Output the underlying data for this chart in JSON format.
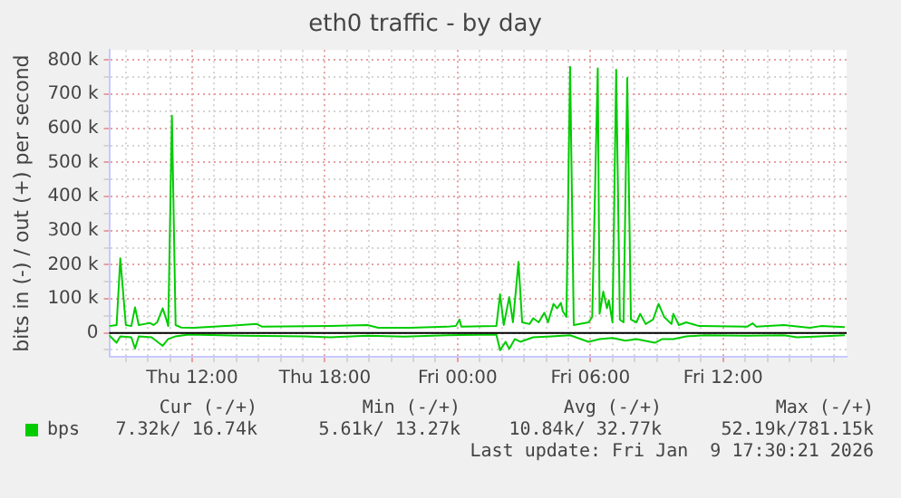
{
  "chart_data": {
    "type": "line",
    "title": "eth0 traffic - by day",
    "ylabel": "bits in (-) / out (+) per second",
    "xlim": [
      "2026-01-08T08:15",
      "2026-01-09T17:35"
    ],
    "xticks": [
      {
        "value": "2026-01-08T09:00",
        "label": null
      },
      {
        "value": "2026-01-08T10:00",
        "label": null
      },
      {
        "value": "2026-01-08T11:00",
        "label": null
      },
      {
        "value": "2026-01-08T12:00",
        "label": "Thu 12:00"
      },
      {
        "value": "2026-01-08T13:00",
        "label": null
      },
      {
        "value": "2026-01-08T14:00",
        "label": null
      },
      {
        "value": "2026-01-08T15:00",
        "label": null
      },
      {
        "value": "2026-01-08T16:00",
        "label": null
      },
      {
        "value": "2026-01-08T17:00",
        "label": null
      },
      {
        "value": "2026-01-08T18:00",
        "label": "Thu 18:00"
      },
      {
        "value": "2026-01-08T19:00",
        "label": null
      },
      {
        "value": "2026-01-08T20:00",
        "label": null
      },
      {
        "value": "2026-01-08T21:00",
        "label": null
      },
      {
        "value": "2026-01-08T22:00",
        "label": null
      },
      {
        "value": "2026-01-08T23:00",
        "label": null
      },
      {
        "value": "2026-01-09T00:00",
        "label": "Fri 00:00"
      },
      {
        "value": "2026-01-09T01:00",
        "label": null
      },
      {
        "value": "2026-01-09T02:00",
        "label": null
      },
      {
        "value": "2026-01-09T03:00",
        "label": null
      },
      {
        "value": "2026-01-09T04:00",
        "label": null
      },
      {
        "value": "2026-01-09T05:00",
        "label": null
      },
      {
        "value": "2026-01-09T06:00",
        "label": "Fri 06:00"
      },
      {
        "value": "2026-01-09T07:00",
        "label": null
      },
      {
        "value": "2026-01-09T08:00",
        "label": null
      },
      {
        "value": "2026-01-09T09:00",
        "label": null
      },
      {
        "value": "2026-01-09T10:00",
        "label": null
      },
      {
        "value": "2026-01-09T11:00",
        "label": null
      },
      {
        "value": "2026-01-09T12:00",
        "label": "Fri 12:00"
      },
      {
        "value": "2026-01-09T13:00",
        "label": null
      },
      {
        "value": "2026-01-09T14:00",
        "label": null
      },
      {
        "value": "2026-01-09T15:00",
        "label": null
      },
      {
        "value": "2026-01-09T16:00",
        "label": null
      },
      {
        "value": "2026-01-09T17:00",
        "label": null
      }
    ],
    "ylim": [
      -70,
      830
    ],
    "yticks": [
      {
        "value": -50,
        "label": null
      },
      {
        "value": 0,
        "label": "0"
      },
      {
        "value": 50,
        "label": null
      },
      {
        "value": 100,
        "label": "100 k"
      },
      {
        "value": 150,
        "label": null
      },
      {
        "value": 200,
        "label": "200 k"
      },
      {
        "value": 250,
        "label": null
      },
      {
        "value": 300,
        "label": "300 k"
      },
      {
        "value": 350,
        "label": null
      },
      {
        "value": 400,
        "label": "400 k"
      },
      {
        "value": 450,
        "label": null
      },
      {
        "value": 500,
        "label": "500 k"
      },
      {
        "value": 550,
        "label": null
      },
      {
        "value": 600,
        "label": "600 k"
      },
      {
        "value": 650,
        "label": null
      },
      {
        "value": 700,
        "label": "700 k"
      },
      {
        "value": 750,
        "label": null
      },
      {
        "value": 800,
        "label": "800 k"
      }
    ],
    "grid": true,
    "legend": "bottom left",
    "marker": "none",
    "line_style": "solid",
    "ref_lines": [
      {
        "axis": "y",
        "value": 0,
        "color": "#000000"
      }
    ],
    "series": [
      {
        "name": "bps",
        "color": "#00cc00",
        "x": [
          "2026-01-08T08:15",
          "2026-01-08T08:35",
          "2026-01-08T08:45",
          "2026-01-08T09:00",
          "2026-01-08T09:15",
          "2026-01-08T09:25",
          "2026-01-08T09:35",
          "2026-01-08T09:50",
          "2026-01-08T10:05",
          "2026-01-08T10:15",
          "2026-01-08T10:25",
          "2026-01-08T10:40",
          "2026-01-08T10:50",
          "2026-01-08T10:55",
          "2026-01-08T11:05",
          "2026-01-08T11:15",
          "2026-01-08T11:30",
          "2026-01-08T12:05",
          "2026-01-08T13:30",
          "2026-01-08T14:55",
          "2026-01-08T15:10",
          "2026-01-08T18:15",
          "2026-01-08T19:55",
          "2026-01-08T20:25",
          "2026-01-08T21:50",
          "2026-01-08T23:30",
          "2026-01-08T23:55",
          "2026-01-09T00:05",
          "2026-01-09T00:10",
          "2026-01-09T01:45",
          "2026-01-09T01:55",
          "2026-01-09T02:05",
          "2026-01-09T02:20",
          "2026-01-09T02:30",
          "2026-01-09T02:45",
          "2026-01-09T02:55",
          "2026-01-09T03:15",
          "2026-01-09T03:25",
          "2026-01-09T03:40",
          "2026-01-09T03:55",
          "2026-01-09T04:05",
          "2026-01-09T04:20",
          "2026-01-09T04:30",
          "2026-01-09T04:40",
          "2026-01-09T04:45",
          "2026-01-09T04:55",
          "2026-01-09T05:05",
          "2026-01-09T05:15",
          "2026-01-09T05:55",
          "2026-01-09T06:05",
          "2026-01-09T06:20",
          "2026-01-09T06:25",
          "2026-01-09T06:35",
          "2026-01-09T06:45",
          "2026-01-09T06:50",
          "2026-01-09T07:00",
          "2026-01-09T07:10",
          "2026-01-09T07:20",
          "2026-01-09T07:30",
          "2026-01-09T07:40",
          "2026-01-09T07:50",
          "2026-01-09T08:05",
          "2026-01-09T08:15",
          "2026-01-09T08:30",
          "2026-01-09T08:50",
          "2026-01-09T09:05",
          "2026-01-09T09:20",
          "2026-01-09T09:40",
          "2026-01-09T09:45",
          "2026-01-09T10:00",
          "2026-01-09T10:20",
          "2026-01-09T10:55",
          "2026-01-09T13:05",
          "2026-01-09T13:20",
          "2026-01-09T13:30",
          "2026-01-09T14:45",
          "2026-01-09T15:55",
          "2026-01-09T16:25",
          "2026-01-09T17:30"
        ],
        "values": [
          20,
          23,
          219,
          23,
          20,
          75,
          23,
          26,
          29,
          23,
          31,
          72,
          39,
          20,
          637,
          23,
          16,
          15,
          20,
          26,
          18,
          20,
          23,
          15,
          15,
          18,
          20,
          39,
          18,
          20,
          113,
          23,
          105,
          31,
          208,
          31,
          26,
          43,
          31,
          59,
          31,
          85,
          72,
          88,
          64,
          47,
          781,
          23,
          31,
          47,
          776,
          56,
          121,
          72,
          96,
          31,
          772,
          39,
          31,
          748,
          39,
          31,
          56,
          26,
          39,
          85,
          47,
          26,
          56,
          23,
          31,
          20,
          18,
          28,
          18,
          23,
          15,
          20,
          17
        ]
      },
      {
        "color": "#00cc00",
        "x": [
          "2026-01-08T08:15",
          "2026-01-08T08:35",
          "2026-01-08T08:45",
          "2026-01-08T09:15",
          "2026-01-08T09:25",
          "2026-01-08T09:35",
          "2026-01-08T10:10",
          "2026-01-08T10:40",
          "2026-01-08T10:55",
          "2026-01-08T11:15",
          "2026-01-08T11:50",
          "2026-01-08T14:20",
          "2026-01-08T17:05",
          "2026-01-08T18:15",
          "2026-01-08T19:55",
          "2026-01-08T21:35",
          "2026-01-08T23:30",
          "2026-01-09T01:45",
          "2026-01-09T01:55",
          "2026-01-09T02:10",
          "2026-01-09T02:20",
          "2026-01-09T02:35",
          "2026-01-09T02:50",
          "2026-01-09T03:25",
          "2026-01-09T04:15",
          "2026-01-09T05:05",
          "2026-01-09T05:55",
          "2026-01-09T06:25",
          "2026-01-09T07:00",
          "2026-01-09T07:35",
          "2026-01-09T08:05",
          "2026-01-09T08:55",
          "2026-01-09T09:15",
          "2026-01-09T09:45",
          "2026-01-09T10:20",
          "2026-01-09T11:10",
          "2026-01-09T13:05",
          "2026-01-09T14:45",
          "2026-01-09T15:20",
          "2026-01-09T16:25",
          "2026-01-09T17:30"
        ],
        "values": [
          -7,
          -29,
          -10,
          -13,
          -46,
          -10,
          -13,
          -38,
          -18,
          -10,
          -5,
          -8,
          -10,
          -13,
          -8,
          -11,
          -7,
          -5,
          -51,
          -26,
          -47,
          -18,
          -26,
          -13,
          -10,
          -7,
          -26,
          -18,
          -15,
          -23,
          -18,
          -29,
          -18,
          -18,
          -10,
          -7,
          -8,
          -7,
          -13,
          -10,
          -7
        ]
      }
    ],
    "annotations": [
      "Cur (-/+)",
      "Min (-/+)",
      "Avg (-/+)",
      "Max (-/+)",
      "7.32k/ 16.74k",
      "5.61k/ 13.27k",
      "10.84k/ 32.77k",
      "52.19k/781.15k",
      "Last update: Fri Jan  9 17:30:21 2026"
    ]
  }
}
